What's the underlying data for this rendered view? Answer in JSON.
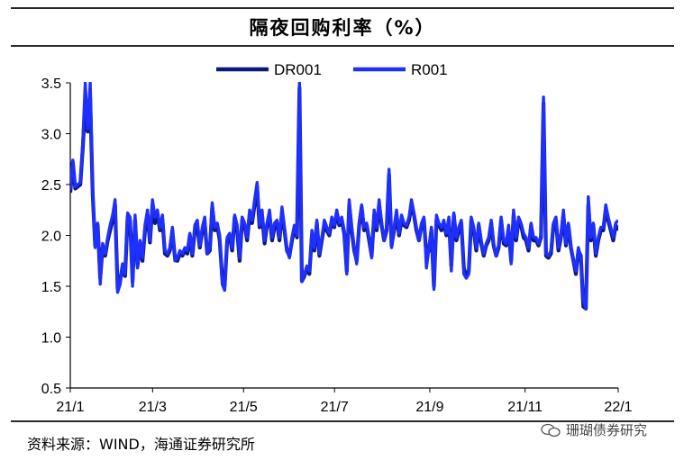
{
  "title": "隔夜回购利率（%）",
  "source": "资料来源：WIND，海通证券研究所",
  "watermark": "珊瑚债券研究",
  "chart_data": {
    "type": "line",
    "title": "隔夜回购利率（%）",
    "xlabel": "",
    "ylabel": "",
    "ylim": [
      0.5,
      3.5
    ],
    "yticks": [
      "0.5",
      "1.0",
      "1.5",
      "2.0",
      "2.5",
      "3.0",
      "3.5"
    ],
    "xlim": [
      0,
      253
    ],
    "xticks": [
      {
        "label": "21/1",
        "pos": 0
      },
      {
        "label": "21/3",
        "pos": 38
      },
      {
        "label": "21/5",
        "pos": 80
      },
      {
        "label": "21/7",
        "pos": 122
      },
      {
        "label": "21/9",
        "pos": 166
      },
      {
        "label": "21/11",
        "pos": 210
      },
      {
        "label": "22/1",
        "pos": 253
      }
    ],
    "grid": false,
    "legend": "top-center",
    "series": [
      {
        "name": "DR001",
        "color": "#0a1a7a",
        "values": [
          2.42,
          2.72,
          2.46,
          2.48,
          2.5,
          2.85,
          3.3,
          3.02,
          3.35,
          2.4,
          1.9,
          2.1,
          1.58,
          1.88,
          1.8,
          1.95,
          2.05,
          2.15,
          2.3,
          1.48,
          1.55,
          1.7,
          1.6,
          2.18,
          2.15,
          1.55,
          2.15,
          1.7,
          1.9,
          1.75,
          2.05,
          2.2,
          1.93,
          2.3,
          2.12,
          2.22,
          2.05,
          2.15,
          1.82,
          1.8,
          1.85,
          2.05,
          1.78,
          1.75,
          1.82,
          1.8,
          1.85,
          1.82,
          2.0,
          1.8,
          2.05,
          2.1,
          1.88,
          2.05,
          2.12,
          1.82,
          1.85,
          2.28,
          2.05,
          2.1,
          1.95,
          1.58,
          1.5,
          1.95,
          2.0,
          1.85,
          2.18,
          2.05,
          1.75,
          2.15,
          2.1,
          1.95,
          2.2,
          2.12,
          2.3,
          2.48,
          2.08,
          2.2,
          1.92,
          2.1,
          2.2,
          1.95,
          2.08,
          2.12,
          1.95,
          2.22,
          2.05,
          1.85,
          1.8,
          1.95,
          2.08,
          1.98,
          3.45,
          1.55,
          1.6,
          1.68,
          1.62,
          2.0,
          1.85,
          2.12,
          1.8,
          1.95,
          2.1,
          2.05,
          2.0,
          2.15,
          2.08,
          2.22,
          2.1,
          2.15,
          2.02,
          1.65,
          2.3,
          2.05,
          1.85,
          1.75,
          2.1,
          2.28,
          2.05,
          2.1,
          1.95,
          1.8,
          2.2,
          2.05,
          2.3,
          2.1,
          1.95,
          2.05,
          2.6,
          1.9,
          2.05,
          2.2,
          2.0,
          2.15,
          2.1,
          2.08,
          2.15,
          2.3,
          2.2,
          2.05,
          1.95,
          2.1,
          2.15,
          1.8,
          1.85,
          2.05,
          1.5,
          2.15,
          2.1,
          2.05,
          2.12,
          2.0,
          2.15,
          1.7,
          2.2,
          1.95,
          2.05,
          2.12,
          1.68,
          1.6,
          1.65,
          2.15,
          2.05,
          1.85,
          2.1,
          1.92,
          1.8,
          1.9,
          1.95,
          2.12,
          1.9,
          1.8,
          1.88,
          2.15,
          1.92,
          1.9,
          2.05,
          1.75,
          2.2,
          1.95,
          2.15,
          2.1,
          1.98,
          1.95,
          1.85,
          2.1,
          1.95,
          1.95,
          1.9,
          1.98,
          3.3,
          1.8,
          1.78,
          1.82,
          2.1,
          2.15,
          1.85,
          1.98,
          2.2,
          1.9,
          2.1,
          1.88,
          1.75,
          1.62,
          1.85,
          1.8,
          1.3,
          1.28,
          2.3,
          1.95,
          2.1,
          1.8,
          1.95,
          2.05,
          2.05,
          2.25,
          2.15,
          2.05,
          1.95,
          2.1,
          2.05
        ]
      },
      {
        "name": "R001",
        "color": "#1f2fff",
        "values": [
          2.45,
          2.74,
          2.48,
          2.5,
          2.52,
          2.9,
          3.5,
          3.05,
          3.5,
          2.42,
          1.88,
          2.12,
          1.52,
          1.92,
          1.82,
          1.98,
          2.1,
          2.2,
          2.35,
          1.44,
          1.52,
          1.72,
          1.62,
          2.22,
          2.18,
          1.5,
          2.2,
          1.68,
          1.95,
          1.78,
          2.1,
          2.25,
          1.95,
          2.35,
          2.18,
          2.25,
          2.08,
          2.2,
          1.85,
          1.82,
          1.88,
          2.08,
          1.75,
          1.78,
          1.85,
          1.82,
          1.88,
          1.85,
          2.02,
          1.82,
          2.1,
          2.15,
          1.9,
          2.08,
          2.18,
          1.82,
          1.88,
          2.32,
          2.08,
          2.12,
          2.0,
          1.52,
          1.46,
          1.98,
          2.02,
          1.88,
          2.2,
          2.1,
          1.78,
          2.18,
          2.12,
          1.98,
          2.25,
          2.15,
          2.35,
          2.52,
          2.1,
          2.25,
          1.95,
          2.12,
          2.25,
          1.98,
          2.12,
          2.15,
          1.98,
          2.28,
          2.08,
          1.85,
          1.78,
          1.98,
          2.1,
          2.0,
          3.5,
          1.55,
          1.62,
          1.7,
          1.65,
          2.05,
          1.88,
          2.15,
          1.82,
          1.98,
          2.15,
          2.08,
          2.02,
          2.18,
          2.1,
          2.25,
          2.12,
          2.18,
          2.05,
          1.62,
          2.35,
          2.08,
          1.88,
          1.72,
          2.12,
          2.3,
          2.08,
          2.12,
          1.98,
          1.78,
          2.25,
          2.08,
          2.35,
          2.12,
          1.95,
          2.08,
          2.65,
          1.88,
          2.08,
          2.25,
          2.02,
          2.2,
          2.12,
          2.1,
          2.18,
          2.35,
          2.22,
          2.08,
          1.95,
          2.12,
          2.18,
          1.68,
          1.88,
          2.08,
          1.47,
          2.2,
          2.12,
          2.08,
          2.15,
          2.02,
          2.18,
          1.65,
          2.22,
          1.98,
          2.08,
          2.15,
          1.62,
          1.58,
          1.62,
          2.18,
          2.08,
          1.88,
          2.12,
          1.95,
          1.82,
          1.92,
          1.98,
          2.15,
          1.92,
          1.8,
          1.9,
          2.18,
          1.95,
          1.92,
          2.1,
          1.72,
          2.25,
          1.98,
          2.18,
          2.12,
          2.02,
          1.98,
          1.88,
          2.12,
          1.98,
          1.98,
          1.92,
          2.0,
          3.36,
          1.82,
          1.8,
          1.85,
          2.12,
          2.18,
          1.88,
          2.0,
          2.25,
          1.92,
          2.12,
          1.9,
          1.75,
          1.65,
          1.88,
          1.78,
          1.36,
          1.28,
          2.38,
          1.98,
          2.12,
          1.82,
          1.98,
          2.08,
          2.08,
          2.3,
          2.18,
          2.08,
          1.98,
          2.12,
          2.15
        ]
      }
    ]
  }
}
